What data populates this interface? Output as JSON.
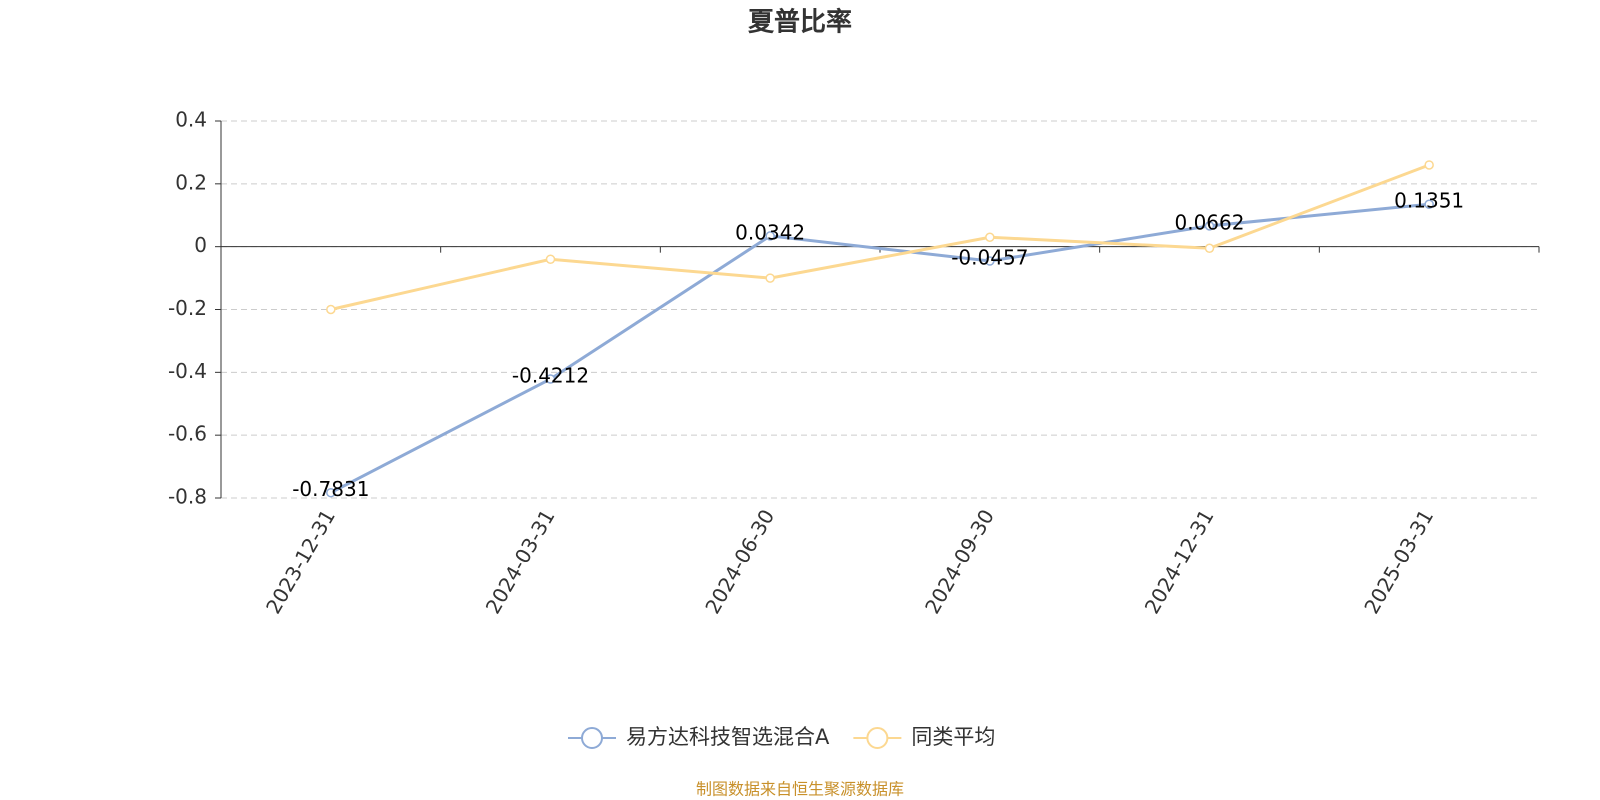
{
  "chart_data": {
    "type": "line",
    "title": "夏普比率",
    "categories": [
      "2023-12-31",
      "2024-03-31",
      "2024-06-30",
      "2024-09-30",
      "2024-12-31",
      "2025-03-31"
    ],
    "series": [
      {
        "name": "易方达科技智选混合A",
        "color": "#8eaad6",
        "labels": true,
        "values": [
          -0.7831,
          -0.4212,
          0.0342,
          -0.0457,
          0.0662,
          0.1351
        ]
      },
      {
        "name": "同类平均",
        "color": "#fcd891",
        "labels": false,
        "values": [
          -0.2,
          -0.04,
          -0.1,
          0.03,
          -0.005,
          0.26
        ]
      }
    ],
    "ylim": [
      -0.8,
      0.4
    ],
    "yticks": [
      -0.8,
      -0.6,
      -0.4,
      -0.2,
      0,
      0.2,
      0.4
    ],
    "grid": true,
    "legend": "bottom",
    "source": "制图数据来自恒生聚源数据库"
  }
}
